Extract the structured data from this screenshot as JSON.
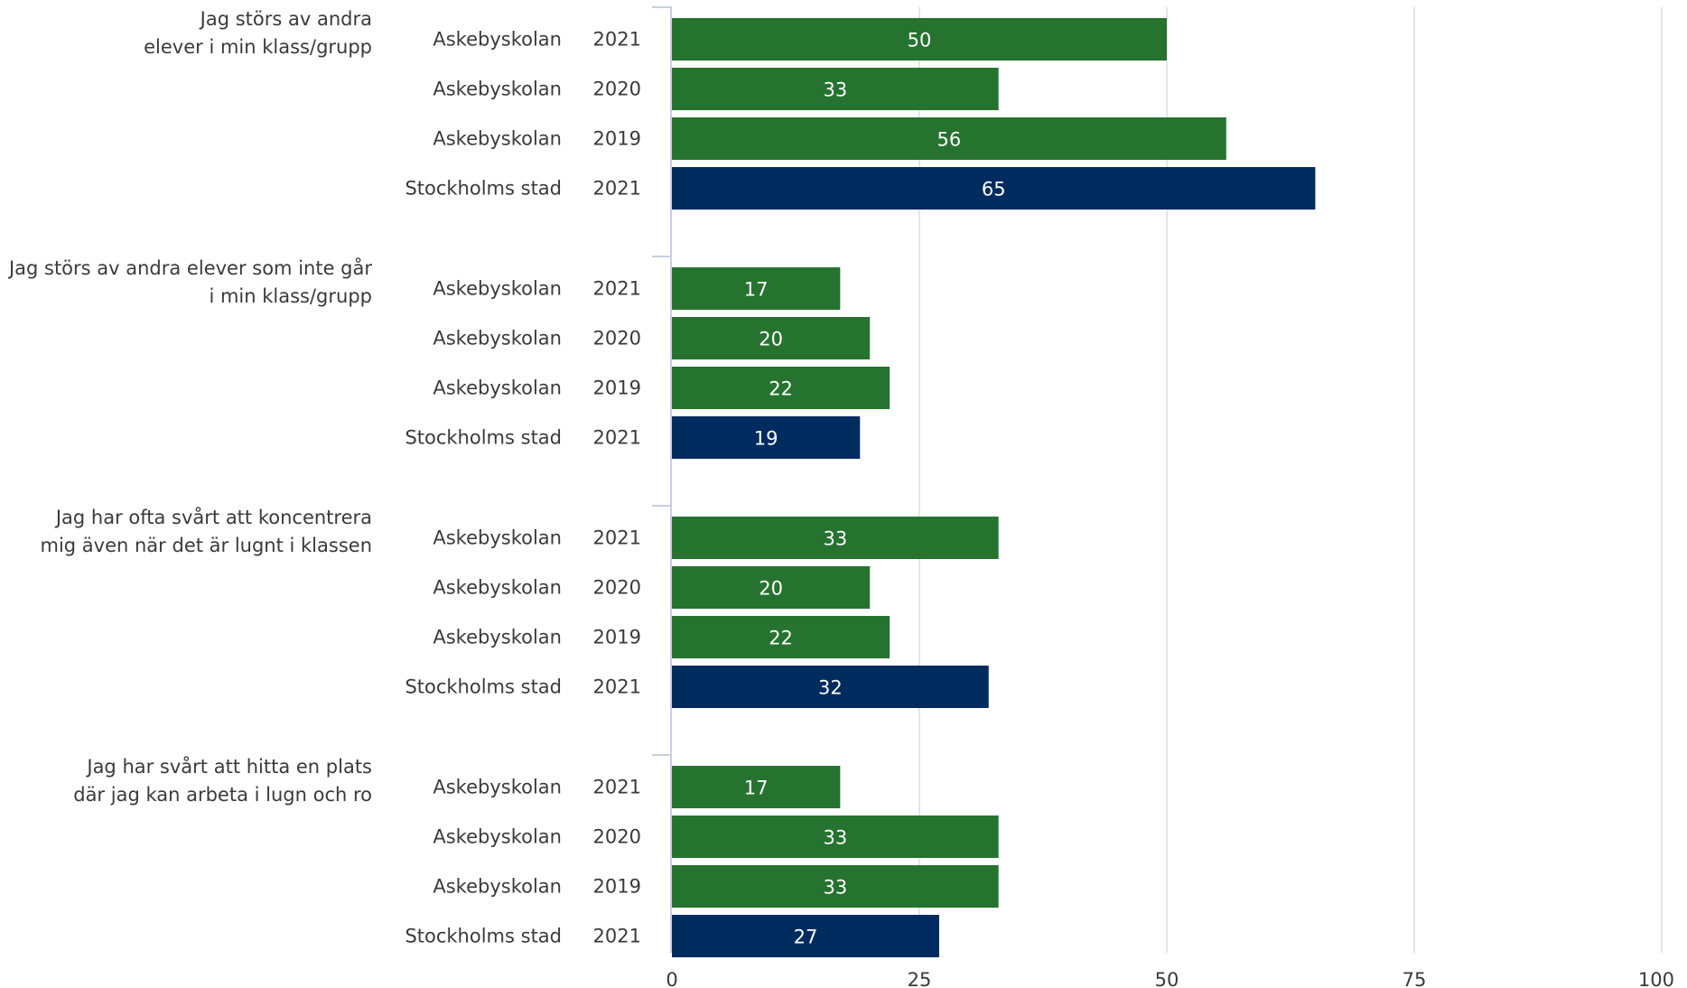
{
  "chart_data": {
    "type": "bar",
    "orientation": "horizontal",
    "xlim": [
      0,
      100
    ],
    "xticks": [
      0,
      25,
      50,
      75,
      100
    ],
    "grid": true,
    "colors": {
      "school": "#267330",
      "city": "#002b5f"
    },
    "groups": [
      {
        "label_lines": [
          "Jag störs av andra",
          "elever i min klass/grupp"
        ],
        "bars": [
          {
            "name": "Askebyskolan",
            "year": "2021",
            "value": 50,
            "kind": "school"
          },
          {
            "name": "Askebyskolan",
            "year": "2020",
            "value": 33,
            "kind": "school"
          },
          {
            "name": "Askebyskolan",
            "year": "2019",
            "value": 56,
            "kind": "school"
          },
          {
            "name": "Stockholms stad",
            "year": "2021",
            "value": 65,
            "kind": "city"
          }
        ]
      },
      {
        "label_lines": [
          "Jag störs av andra elever som inte går",
          "i min klass/grupp"
        ],
        "bars": [
          {
            "name": "Askebyskolan",
            "year": "2021",
            "value": 17,
            "kind": "school"
          },
          {
            "name": "Askebyskolan",
            "year": "2020",
            "value": 20,
            "kind": "school"
          },
          {
            "name": "Askebyskolan",
            "year": "2019",
            "value": 22,
            "kind": "school"
          },
          {
            "name": "Stockholms stad",
            "year": "2021",
            "value": 19,
            "kind": "city"
          }
        ]
      },
      {
        "label_lines": [
          "Jag har ofta svårt att koncentrera",
          "mig även när det är lugnt i klassen"
        ],
        "bars": [
          {
            "name": "Askebyskolan",
            "year": "2021",
            "value": 33,
            "kind": "school"
          },
          {
            "name": "Askebyskolan",
            "year": "2020",
            "value": 20,
            "kind": "school"
          },
          {
            "name": "Askebyskolan",
            "year": "2019",
            "value": 22,
            "kind": "school"
          },
          {
            "name": "Stockholms stad",
            "year": "2021",
            "value": 32,
            "kind": "city"
          }
        ]
      },
      {
        "label_lines": [
          "Jag har svårt att hitta en plats",
          "där jag kan arbeta i lugn och ro"
        ],
        "bars": [
          {
            "name": "Askebyskolan",
            "year": "2021",
            "value": 17,
            "kind": "school"
          },
          {
            "name": "Askebyskolan",
            "year": "2020",
            "value": 33,
            "kind": "school"
          },
          {
            "name": "Askebyskolan",
            "year": "2019",
            "value": 33,
            "kind": "school"
          },
          {
            "name": "Stockholms stad",
            "year": "2021",
            "value": 27,
            "kind": "city"
          }
        ]
      }
    ]
  }
}
